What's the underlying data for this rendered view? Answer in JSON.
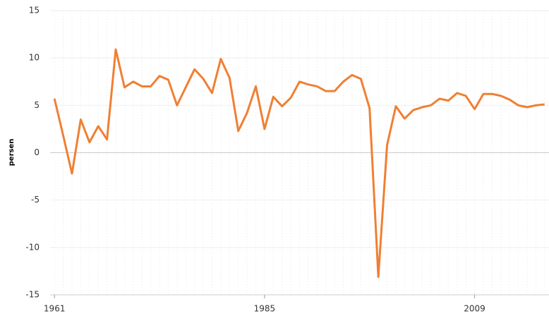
{
  "chart_data": {
    "type": "line",
    "y_label": "persen",
    "x": [
      1961,
      1962,
      1963,
      1964,
      1965,
      1966,
      1967,
      1968,
      1969,
      1970,
      1971,
      1972,
      1973,
      1974,
      1975,
      1976,
      1977,
      1978,
      1979,
      1980,
      1981,
      1982,
      1983,
      1984,
      1985,
      1986,
      1987,
      1988,
      1989,
      1990,
      1991,
      1992,
      1993,
      1994,
      1995,
      1996,
      1997,
      1998,
      1999,
      2000,
      2001,
      2002,
      2003,
      2004,
      2005,
      2006,
      2007,
      2008,
      2009,
      2010,
      2011,
      2012,
      2013,
      2014,
      2015,
      2016,
      2017
    ],
    "series": [
      {
        "color": "#f07f33",
        "values": [
          5.7,
          1.8,
          -2.2,
          3.5,
          1.1,
          2.8,
          1.4,
          10.9,
          6.9,
          7.5,
          7.0,
          7.0,
          8.1,
          7.7,
          5.0,
          6.9,
          8.8,
          7.8,
          6.3,
          9.9,
          7.9,
          2.3,
          4.2,
          7.0,
          2.5,
          5.9,
          4.9,
          5.8,
          7.5,
          7.2,
          7.0,
          6.5,
          6.5,
          7.5,
          8.2,
          7.8,
          4.7,
          -13.1,
          0.8,
          4.9,
          3.6,
          4.5,
          4.8,
          5.0,
          5.7,
          5.5,
          6.3,
          6.0,
          4.6,
          6.2,
          6.2,
          6.0,
          5.6,
          5.0,
          4.8,
          5.0,
          5.1
        ]
      }
    ],
    "xlim": [
      1960.5,
      2017.5
    ],
    "xticks": [
      1961,
      1985,
      2009
    ],
    "ylim": [
      -15,
      15
    ],
    "yticks": [
      -15,
      -10,
      -5,
      0,
      5,
      10,
      15
    ],
    "grid": true
  }
}
